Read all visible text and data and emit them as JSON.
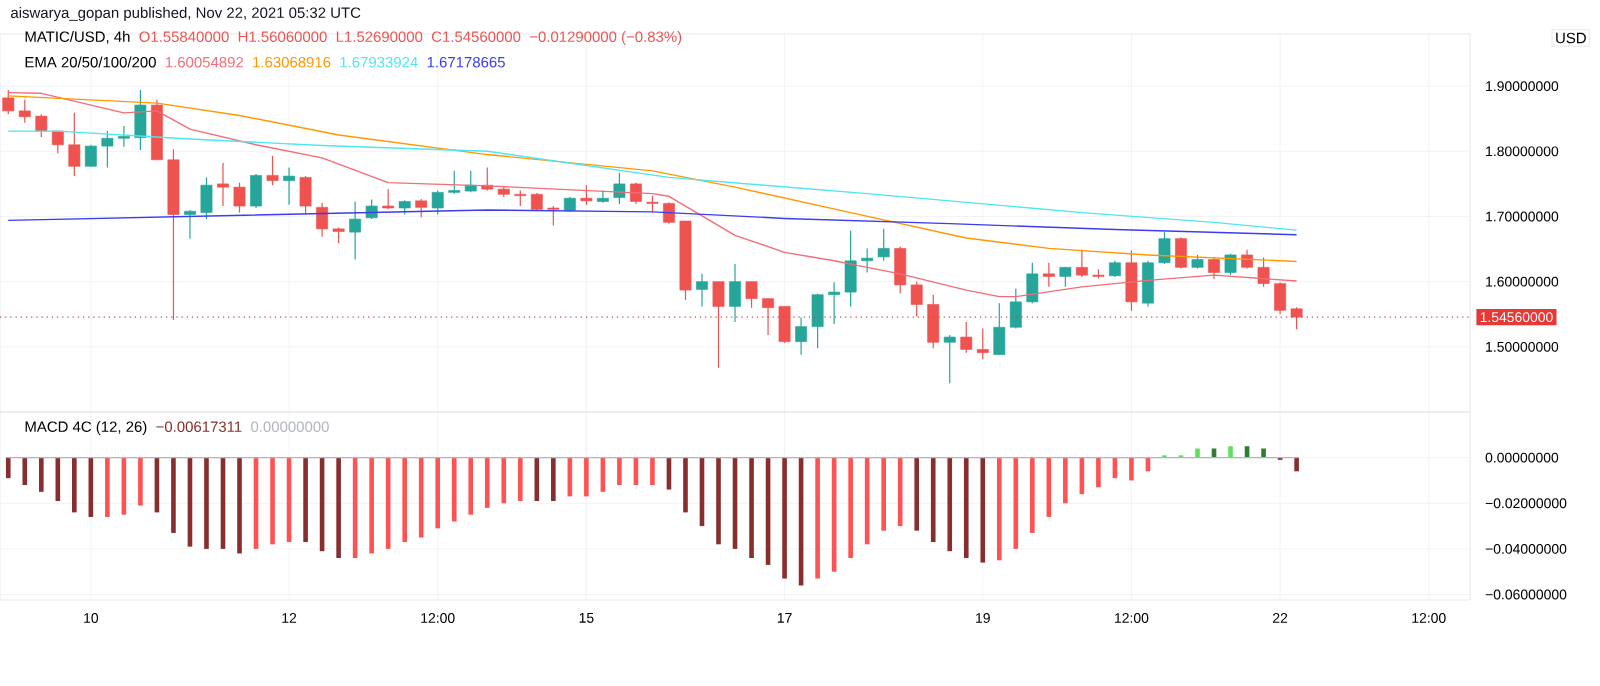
{
  "chart_data": [
    {
      "type": "candlestick",
      "title": "aiswarya_gopan published, Nov 22, 2021 05:32 UTC",
      "subtitle": "MATIC/USD, 4h",
      "ylabel": "USD",
      "annotations": [
        "O1.55840000",
        "H1.56060000",
        "L1.52690000",
        "C1.54560000",
        "−0.01290000 (−0.83%)"
      ],
      "legend_title": "EMA 20/50/100/200",
      "grid": true,
      "tick_labels": "y",
      "x": [
        "2021-11-09T04:00",
        "2021-11-09T08:00",
        "2021-11-09T12:00",
        "2021-11-09T16:00",
        "2021-11-09T20:00",
        "2021-11-10T00:00",
        "2021-11-10T04:00",
        "2021-11-10T08:00",
        "2021-11-10T12:00",
        "2021-11-10T16:00",
        "2021-11-10T20:00",
        "2021-11-11T00:00",
        "2021-11-11T04:00",
        "2021-11-11T08:00",
        "2021-11-11T12:00",
        "2021-11-11T16:00",
        "2021-11-11T20:00",
        "2021-11-12T00:00",
        "2021-11-12T04:00",
        "2021-11-12T08:00",
        "2021-11-12T12:00",
        "2021-11-12T16:00",
        "2021-11-12T20:00",
        "2021-11-13T00:00",
        "2021-11-13T04:00",
        "2021-11-13T08:00",
        "2021-11-13T12:00",
        "2021-11-13T16:00",
        "2021-11-13T20:00",
        "2021-11-14T00:00",
        "2021-11-14T04:00",
        "2021-11-14T08:00",
        "2021-11-14T12:00",
        "2021-11-14T16:00",
        "2021-11-14T20:00",
        "2021-11-15T00:00",
        "2021-11-15T04:00",
        "2021-11-15T08:00",
        "2021-11-15T12:00",
        "2021-11-15T16:00",
        "2021-11-15T20:00",
        "2021-11-16T00:00",
        "2021-11-16T04:00",
        "2021-11-16T08:00",
        "2021-11-16T12:00",
        "2021-11-16T16:00",
        "2021-11-16T20:00",
        "2021-11-17T00:00",
        "2021-11-17T04:00",
        "2021-11-17T08:00",
        "2021-11-17T12:00",
        "2021-11-17T16:00",
        "2021-11-17T20:00",
        "2021-11-18T00:00",
        "2021-11-18T04:00",
        "2021-11-18T08:00",
        "2021-11-18T12:00",
        "2021-11-18T16:00",
        "2021-11-18T20:00",
        "2021-11-19T00:00",
        "2021-11-19T04:00",
        "2021-11-19T08:00",
        "2021-11-19T12:00",
        "2021-11-19T16:00",
        "2021-11-19T20:00",
        "2021-11-20T00:00",
        "2021-11-20T04:00",
        "2021-11-20T08:00",
        "2021-11-20T12:00",
        "2021-11-20T16:00",
        "2021-11-20T20:00",
        "2021-11-21T00:00",
        "2021-11-21T04:00",
        "2021-11-21T08:00",
        "2021-11-21T12:00",
        "2021-11-21T16:00",
        "2021-11-21T20:00",
        "2021-11-22T00:00",
        "2021-11-22T04:00"
      ],
      "ohlc": [
        [
          1.882,
          1.894,
          1.857,
          1.862
        ],
        [
          1.862,
          1.879,
          1.844,
          1.853
        ],
        [
          1.854,
          1.857,
          1.822,
          1.831
        ],
        [
          1.831,
          1.831,
          1.797,
          1.81
        ],
        [
          1.81,
          1.859,
          1.762,
          1.777
        ],
        [
          1.777,
          1.81,
          1.777,
          1.808
        ],
        [
          1.808,
          1.831,
          1.775,
          1.82
        ],
        [
          1.82,
          1.839,
          1.807,
          1.823
        ],
        [
          1.821,
          1.894,
          1.802,
          1.871
        ],
        [
          1.871,
          1.879,
          1.787,
          1.787
        ],
        [
          1.787,
          1.803,
          1.541,
          1.703
        ],
        [
          1.703,
          1.71,
          1.666,
          1.708
        ],
        [
          1.706,
          1.76,
          1.696,
          1.748
        ],
        [
          1.75,
          1.782,
          1.716,
          1.745
        ],
        [
          1.745,
          1.752,
          1.706,
          1.716
        ],
        [
          1.716,
          1.765,
          1.713,
          1.763
        ],
        [
          1.763,
          1.793,
          1.748,
          1.755
        ],
        [
          1.755,
          1.775,
          1.718,
          1.762
        ],
        [
          1.76,
          1.762,
          1.704,
          1.716
        ],
        [
          1.714,
          1.721,
          1.669,
          1.681
        ],
        [
          1.681,
          1.683,
          1.659,
          1.677
        ],
        [
          1.676,
          1.723,
          1.634,
          1.696
        ],
        [
          1.698,
          1.726,
          1.696,
          1.716
        ],
        [
          1.716,
          1.742,
          1.711,
          1.713
        ],
        [
          1.713,
          1.725,
          1.703,
          1.723
        ],
        [
          1.724,
          1.727,
          1.699,
          1.714
        ],
        [
          1.713,
          1.74,
          1.703,
          1.737
        ],
        [
          1.737,
          1.77,
          1.735,
          1.74
        ],
        [
          1.739,
          1.77,
          1.737,
          1.748
        ],
        [
          1.748,
          1.775,
          1.74,
          1.742
        ],
        [
          1.742,
          1.745,
          1.73,
          1.734
        ],
        [
          1.734,
          1.74,
          1.716,
          1.732
        ],
        [
          1.734,
          1.736,
          1.709,
          1.711
        ],
        [
          1.713,
          1.716,
          1.686,
          1.711
        ],
        [
          1.709,
          1.73,
          1.707,
          1.728
        ],
        [
          1.728,
          1.748,
          1.718,
          1.724
        ],
        [
          1.723,
          1.74,
          1.721,
          1.728
        ],
        [
          1.729,
          1.767,
          1.719,
          1.75
        ],
        [
          1.75,
          1.752,
          1.719,
          1.723
        ],
        [
          1.722,
          1.732,
          1.706,
          1.72
        ],
        [
          1.72,
          1.722,
          1.689,
          1.691
        ],
        [
          1.693,
          1.693,
          1.572,
          1.587
        ],
        [
          1.588,
          1.612,
          1.562,
          1.6
        ],
        [
          1.6,
          1.6,
          1.468,
          1.562
        ],
        [
          1.562,
          1.627,
          1.538,
          1.6
        ],
        [
          1.6,
          1.6,
          1.56,
          1.574
        ],
        [
          1.574,
          1.574,
          1.518,
          1.56
        ],
        [
          1.562,
          1.562,
          1.506,
          1.508
        ],
        [
          1.508,
          1.545,
          1.488,
          1.531
        ],
        [
          1.531,
          1.582,
          1.498,
          1.58
        ],
        [
          1.58,
          1.599,
          1.535,
          1.584
        ],
        [
          1.584,
          1.678,
          1.562,
          1.632
        ],
        [
          1.632,
          1.651,
          1.614,
          1.636
        ],
        [
          1.638,
          1.681,
          1.632,
          1.651
        ],
        [
          1.651,
          1.654,
          1.582,
          1.595
        ],
        [
          1.595,
          1.6,
          1.547,
          1.565
        ],
        [
          1.565,
          1.58,
          1.498,
          1.507
        ],
        [
          1.507,
          1.518,
          1.444,
          1.515
        ],
        [
          1.515,
          1.538,
          1.491,
          1.496
        ],
        [
          1.496,
          1.528,
          1.481,
          1.491
        ],
        [
          1.488,
          1.567,
          1.488,
          1.53
        ],
        [
          1.53,
          1.589,
          1.528,
          1.569
        ],
        [
          1.569,
          1.629,
          1.567,
          1.612
        ],
        [
          1.612,
          1.629,
          1.592,
          1.608
        ],
        [
          1.608,
          1.622,
          1.592,
          1.622
        ],
        [
          1.622,
          1.649,
          1.607,
          1.61
        ],
        [
          1.61,
          1.619,
          1.605,
          1.608
        ],
        [
          1.609,
          1.632,
          1.607,
          1.629
        ],
        [
          1.629,
          1.648,
          1.555,
          1.569
        ],
        [
          1.567,
          1.632,
          1.562,
          1.629
        ],
        [
          1.629,
          1.676,
          1.627,
          1.666
        ],
        [
          1.666,
          1.668,
          1.62,
          1.622
        ],
        [
          1.622,
          1.641,
          1.62,
          1.634
        ],
        [
          1.634,
          1.638,
          1.604,
          1.614
        ],
        [
          1.614,
          1.643,
          1.61,
          1.641
        ],
        [
          1.641,
          1.649,
          1.62,
          1.622
        ],
        [
          1.622,
          1.637,
          1.592,
          1.597
        ],
        [
          1.597,
          1.599,
          1.55,
          1.556
        ],
        [
          1.5584,
          1.5606,
          1.5269,
          1.5456
        ]
      ],
      "series": [
        {
          "type": "line",
          "name": "1.60054892",
          "color": "#f26d76",
          "x": [
            "2021-11-09T04:00",
            "2021-11-09T12:00",
            "2021-11-10T08:00",
            "2021-11-10T16:00",
            "2021-11-11T00:00",
            "2021-11-11T16:00",
            "2021-11-12T08:00",
            "2021-11-13T00:00",
            "2021-11-14T00:00",
            "2021-11-15T16:00",
            "2021-11-15T20:00",
            "2021-11-16T12:00",
            "2021-11-17T00:00",
            "2021-11-17T12:00",
            "2021-11-17T16:00",
            "2021-11-18T04:00",
            "2021-11-18T20:00",
            "2021-11-19T04:00",
            "2021-11-19T08:00",
            "2021-11-20T00:00",
            "2021-11-20T16:00",
            "2021-11-21T08:00",
            "2021-11-22T04:00"
          ],
          "values": [
            1.89,
            1.889,
            1.859,
            1.862,
            1.834,
            1.81,
            1.79,
            1.752,
            1.747,
            1.735,
            1.731,
            1.671,
            1.645,
            1.632,
            1.627,
            1.612,
            1.587,
            1.577,
            1.577,
            1.592,
            1.602,
            1.61,
            1.601
          ]
        },
        {
          "type": "line",
          "name": "1.63068916",
          "color": "#ff9800",
          "x": [
            "2021-11-09T04:00",
            "2021-11-10T16:00",
            "2021-11-11T12:00",
            "2021-11-12T12:00",
            "2021-11-14T00:00",
            "2021-11-15T16:00",
            "2021-11-16T12:00",
            "2021-11-17T16:00",
            "2021-11-18T20:00",
            "2021-11-19T16:00",
            "2021-11-20T16:00",
            "2021-11-22T04:00"
          ],
          "values": [
            1.885,
            1.874,
            1.855,
            1.825,
            1.795,
            1.77,
            1.745,
            1.706,
            1.667,
            1.651,
            1.641,
            1.631
          ]
        },
        {
          "type": "line",
          "name": "1.67933924",
          "color": "#4ee6f0",
          "x": [
            "2021-11-09T04:00",
            "2021-11-09T16:00",
            "2021-11-11T00:00",
            "2021-11-12T08:00",
            "2021-11-14T00:00",
            "2021-11-15T20:00",
            "2021-11-17T20:00",
            "2021-11-18T16:00",
            "2021-11-20T00:00",
            "2021-11-21T08:00",
            "2021-11-22T04:00"
          ],
          "values": [
            1.831,
            1.831,
            1.819,
            1.809,
            1.8,
            1.76,
            1.735,
            1.724,
            1.706,
            1.691,
            1.679
          ]
        },
        {
          "type": "line",
          "name": "1.67178665",
          "color": "#3c3cf0",
          "x": [
            "2021-11-09T04:00",
            "2021-11-14T00:00",
            "2021-11-15T16:00",
            "2021-11-17T00:00",
            "2021-11-18T16:00",
            "2021-11-20T08:00",
            "2021-11-22T04:00"
          ],
          "values": [
            1.694,
            1.71,
            1.707,
            1.697,
            1.689,
            1.68,
            1.672
          ]
        }
      ],
      "ref_lines": [
        {
          "axis": "y",
          "value": 1.5456,
          "label": "1.54560000",
          "color": "#e53935",
          "line_style": "dotted"
        }
      ],
      "xlim": [
        "2021-11-09T02:00",
        "2021-11-23T22:00"
      ],
      "xticks": [
        {
          "value": "2021-11-10T00:00",
          "label": null
        },
        {
          "value": "2021-11-12T00:00",
          "label": null
        },
        {
          "value": "2021-11-13T12:00",
          "label": null
        },
        {
          "value": "2021-11-15T00:00",
          "label": null
        },
        {
          "value": "2021-11-17T00:00",
          "label": null
        },
        {
          "value": "2021-11-19T00:00",
          "label": null
        },
        {
          "value": "2021-11-20T12:00",
          "label": null
        },
        {
          "value": "2021-11-22T00:00",
          "label": null
        },
        {
          "value": "2021-11-23T12:00",
          "label": null
        }
      ],
      "ylim": [
        1.4,
        1.98
      ],
      "yticks": [
        {
          "value": 1.5,
          "label": "1.50000000"
        },
        {
          "value": 1.6,
          "label": "1.60000000"
        },
        {
          "value": 1.7,
          "label": "1.70000000"
        },
        {
          "value": 1.8,
          "label": "1.80000000"
        },
        {
          "value": 1.9,
          "label": "1.90000000"
        }
      ]
    },
    {
      "type": "bar",
      "title": "MACD 4C (12, 26)",
      "legend": "top left",
      "grid": true,
      "x": [
        "2021-11-09T04:00",
        "2021-11-09T08:00",
        "2021-11-09T12:00",
        "2021-11-09T16:00",
        "2021-11-09T20:00",
        "2021-11-10T00:00",
        "2021-11-10T04:00",
        "2021-11-10T08:00",
        "2021-11-10T12:00",
        "2021-11-10T16:00",
        "2021-11-10T20:00",
        "2021-11-11T00:00",
        "2021-11-11T04:00",
        "2021-11-11T08:00",
        "2021-11-11T12:00",
        "2021-11-11T16:00",
        "2021-11-11T20:00",
        "2021-11-12T00:00",
        "2021-11-12T04:00",
        "2021-11-12T08:00",
        "2021-11-12T12:00",
        "2021-11-12T16:00",
        "2021-11-12T20:00",
        "2021-11-13T00:00",
        "2021-11-13T04:00",
        "2021-11-13T08:00",
        "2021-11-13T12:00",
        "2021-11-13T16:00",
        "2021-11-13T20:00",
        "2021-11-14T00:00",
        "2021-11-14T04:00",
        "2021-11-14T08:00",
        "2021-11-14T12:00",
        "2021-11-14T16:00",
        "2021-11-14T20:00",
        "2021-11-15T00:00",
        "2021-11-15T04:00",
        "2021-11-15T08:00",
        "2021-11-15T12:00",
        "2021-11-15T16:00",
        "2021-11-15T20:00",
        "2021-11-16T00:00",
        "2021-11-16T04:00",
        "2021-11-16T08:00",
        "2021-11-16T12:00",
        "2021-11-16T16:00",
        "2021-11-16T20:00",
        "2021-11-17T00:00",
        "2021-11-17T04:00",
        "2021-11-17T08:00",
        "2021-11-17T12:00",
        "2021-11-17T16:00",
        "2021-11-17T20:00",
        "2021-11-18T00:00",
        "2021-11-18T04:00",
        "2021-11-18T08:00",
        "2021-11-18T12:00",
        "2021-11-18T16:00",
        "2021-11-18T20:00",
        "2021-11-19T00:00",
        "2021-11-19T04:00",
        "2021-11-19T08:00",
        "2021-11-19T12:00",
        "2021-11-19T16:00",
        "2021-11-19T20:00",
        "2021-11-20T00:00",
        "2021-11-20T04:00",
        "2021-11-20T08:00",
        "2021-11-20T12:00",
        "2021-11-20T16:00",
        "2021-11-20T20:00",
        "2021-11-21T00:00",
        "2021-11-21T04:00",
        "2021-11-21T08:00",
        "2021-11-21T12:00",
        "2021-11-21T16:00",
        "2021-11-21T20:00",
        "2021-11-22T00:00",
        "2021-11-22T04:00"
      ],
      "series": [
        {
          "name": "−0.00617311",
          "color": "#882e2e",
          "values": [
            -0.009,
            -0.012,
            -0.015,
            -0.019,
            -0.024,
            -0.026,
            -0.026,
            -0.025,
            -0.021,
            -0.024,
            -0.033,
            -0.039,
            -0.04,
            -0.04,
            -0.042,
            -0.04,
            -0.038,
            -0.037,
            -0.037,
            -0.041,
            -0.044,
            -0.044,
            -0.042,
            -0.04,
            -0.037,
            -0.035,
            -0.031,
            -0.028,
            -0.025,
            -0.022,
            -0.02,
            -0.019,
            -0.019,
            -0.019,
            -0.017,
            -0.017,
            -0.015,
            -0.012,
            -0.012,
            -0.012,
            -0.014,
            -0.024,
            -0.03,
            -0.038,
            -0.04,
            -0.044,
            -0.047,
            -0.053,
            -0.056,
            -0.053,
            -0.05,
            -0.044,
            -0.038,
            -0.032,
            -0.03,
            -0.032,
            -0.037,
            -0.041,
            -0.044,
            -0.046,
            -0.045,
            -0.04,
            -0.033,
            -0.026,
            -0.02,
            -0.016,
            -0.013,
            -0.009,
            -0.01,
            -0.006,
            0.001,
            0.001,
            0.004,
            0.004,
            0.005,
            0.005,
            0.004,
            -0.001,
            -0.006
          ],
          "colors": [
            "#882e2e",
            "#882e2e",
            "#882e2e",
            "#882e2e",
            "#882e2e",
            "#882e2e",
            "#ff5252",
            "#ff5252",
            "#ff5252",
            "#882e2e",
            "#882e2e",
            "#882e2e",
            "#882e2e",
            "#882e2e",
            "#882e2e",
            "#ff5252",
            "#ff5252",
            "#ff5252",
            "#882e2e",
            "#882e2e",
            "#882e2e",
            "#ff5252",
            "#ff5252",
            "#ff5252",
            "#ff5252",
            "#ff5252",
            "#ff5252",
            "#ff5252",
            "#ff5252",
            "#ff5252",
            "#ff5252",
            "#ff5252",
            "#882e2e",
            "#882e2e",
            "#ff5252",
            "#ff5252",
            "#ff5252",
            "#ff5252",
            "#ff5252",
            "#ff5252",
            "#882e2e",
            "#882e2e",
            "#882e2e",
            "#882e2e",
            "#882e2e",
            "#882e2e",
            "#882e2e",
            "#882e2e",
            "#882e2e",
            "#ff5252",
            "#ff5252",
            "#ff5252",
            "#ff5252",
            "#ff5252",
            "#ff5252",
            "#882e2e",
            "#882e2e",
            "#882e2e",
            "#882e2e",
            "#882e2e",
            "#ff5252",
            "#ff5252",
            "#ff5252",
            "#ff5252",
            "#ff5252",
            "#ff5252",
            "#ff5252",
            "#ff5252",
            "#ff5252",
            "#ff5252",
            "#5ee05e",
            "#5ee05e",
            "#5ee05e",
            "#2e7d32",
            "#5ee05e",
            "#2e7d32",
            "#2e7d32",
            "#882e2e",
            "#882e2e"
          ]
        },
        {
          "type": "line",
          "name": "0.00000000",
          "color": "#b2b5be",
          "values": [
            0,
            0,
            0,
            0,
            0,
            0,
            0,
            0,
            0,
            0,
            0,
            0,
            0,
            0,
            0,
            0,
            0,
            0,
            0,
            0,
            0,
            0,
            0,
            0,
            0,
            0,
            0,
            0,
            0,
            0,
            0,
            0,
            0,
            0,
            0,
            0,
            0,
            0,
            0,
            0,
            0,
            0,
            0,
            0,
            0,
            0,
            0,
            0,
            0,
            0,
            0,
            0,
            0,
            0,
            0,
            0,
            0,
            0,
            0,
            0,
            0,
            0,
            0,
            0,
            0,
            0,
            0,
            0,
            0,
            0,
            0,
            0,
            0,
            0,
            0,
            0,
            0,
            0,
            0
          ]
        }
      ],
      "xlim": [
        "2021-11-09T02:00",
        "2021-11-23T22:00"
      ],
      "xticks": [
        {
          "value": "2021-11-10T00:00",
          "label": "10"
        },
        {
          "value": "2021-11-12T00:00",
          "label": "12"
        },
        {
          "value": "2021-11-13T12:00",
          "label": "12:00"
        },
        {
          "value": "2021-11-15T00:00",
          "label": "15"
        },
        {
          "value": "2021-11-17T00:00",
          "label": "17"
        },
        {
          "value": "2021-11-19T00:00",
          "label": "19"
        },
        {
          "value": "2021-11-20T12:00",
          "label": "12:00"
        },
        {
          "value": "2021-11-22T00:00",
          "label": "22"
        },
        {
          "value": "2021-11-23T12:00",
          "label": "12:00"
        }
      ],
      "ylim": [
        -0.0624,
        0.02
      ],
      "yticks": [
        {
          "value": 0,
          "label": "0.00000000"
        },
        {
          "value": -0.02,
          "label": "−0.02000000"
        },
        {
          "value": -0.04,
          "label": "−0.04000000"
        },
        {
          "value": -0.06,
          "label": "−0.06000000"
        }
      ]
    }
  ]
}
